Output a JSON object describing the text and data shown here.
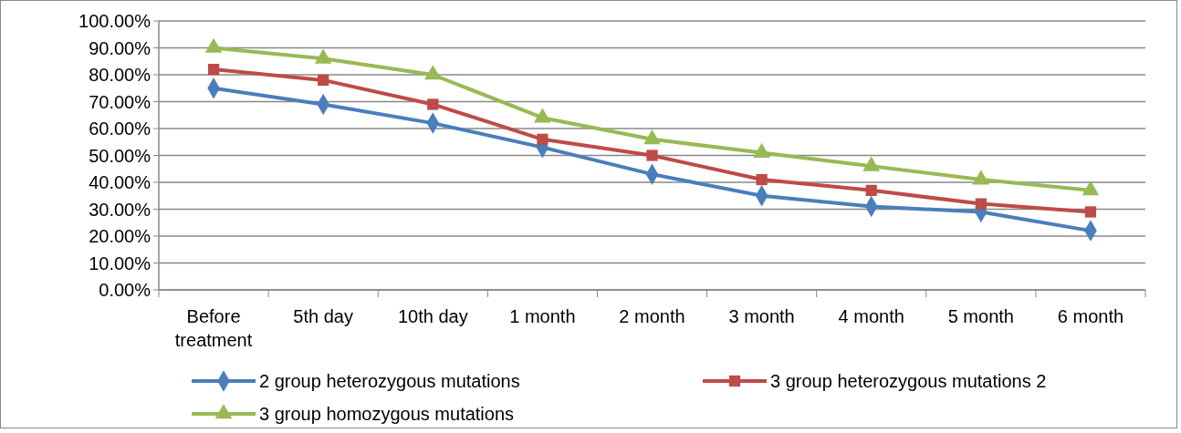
{
  "chart_data": {
    "type": "line",
    "categories": [
      "Before treatment",
      "5th day",
      "10th day",
      "1 month",
      "2 month",
      "3 month",
      "4 month",
      "5 month",
      "6 month"
    ],
    "series": [
      {
        "name": "2 group heterozygous mutations",
        "color": "#4a7ebb",
        "marker": "diamond",
        "values": [
          75,
          69,
          62,
          53,
          43,
          35,
          31,
          29,
          22
        ]
      },
      {
        "name": "3 group heterozygous mutations 2",
        "color": "#be4b48",
        "marker": "square",
        "values": [
          82,
          78,
          69,
          56,
          50,
          41,
          37,
          32,
          29
        ]
      },
      {
        "name": "3 group homozygous mutations",
        "color": "#98b954",
        "marker": "triangle",
        "values": [
          90,
          86,
          80,
          64,
          56,
          51,
          46,
          41,
          37
        ]
      }
    ],
    "ylim": [
      0,
      100
    ],
    "yticks": [
      {
        "value": 0,
        "label": "0.00%"
      },
      {
        "value": 10,
        "label": "10.00%"
      },
      {
        "value": 20,
        "label": "20.00%"
      },
      {
        "value": 30,
        "label": "30.00%"
      },
      {
        "value": 40,
        "label": "40.00%"
      },
      {
        "value": 50,
        "label": "50.00%"
      },
      {
        "value": 60,
        "label": "60.00%"
      },
      {
        "value": 70,
        "label": "70.00%"
      },
      {
        "value": 80,
        "label": "80.00%"
      },
      {
        "value": 90,
        "label": "90.00%"
      },
      {
        "value": 100,
        "label": "100.00%"
      }
    ],
    "grid": "y",
    "legend": "bottom",
    "line_style": "solid"
  }
}
